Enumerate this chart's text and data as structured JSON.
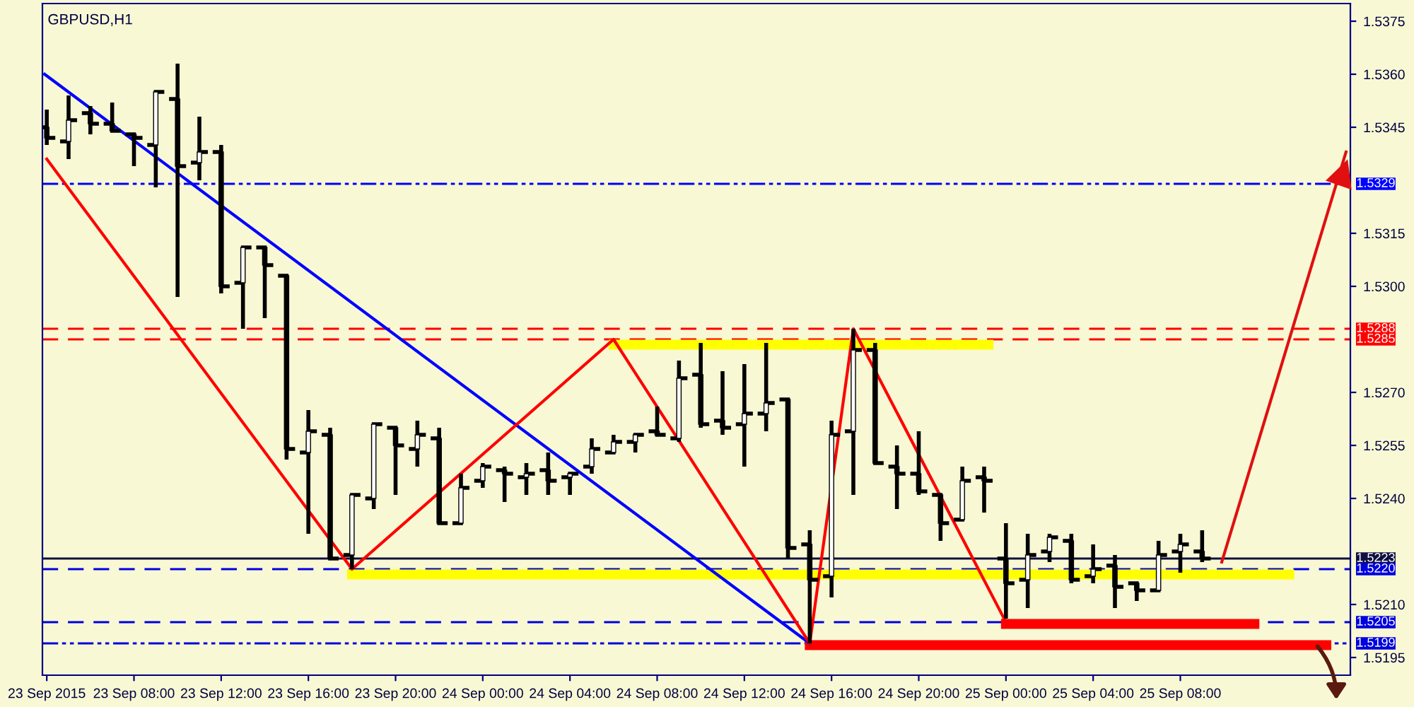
{
  "chart_data": {
    "type": "candlestick",
    "title": "GBPUSD,H1",
    "x": [
      "2015-09-23T04:00",
      "2015-09-23T05:00",
      "2015-09-23T06:00",
      "2015-09-23T07:00",
      "2015-09-23T08:00",
      "2015-09-23T09:00",
      "2015-09-23T10:00",
      "2015-09-23T11:00",
      "2015-09-23T12:00",
      "2015-09-23T13:00",
      "2015-09-23T14:00",
      "2015-09-23T15:00",
      "2015-09-23T16:00",
      "2015-09-23T17:00",
      "2015-09-23T18:00",
      "2015-09-23T19:00",
      "2015-09-23T20:00",
      "2015-09-23T21:00",
      "2015-09-23T22:00",
      "2015-09-23T23:00",
      "2015-09-24T00:00",
      "2015-09-24T01:00",
      "2015-09-24T02:00",
      "2015-09-24T03:00",
      "2015-09-24T04:00",
      "2015-09-24T05:00",
      "2015-09-24T06:00",
      "2015-09-24T07:00",
      "2015-09-24T08:00",
      "2015-09-24T09:00",
      "2015-09-24T10:00",
      "2015-09-24T11:00",
      "2015-09-24T12:00",
      "2015-09-24T13:00",
      "2015-09-24T14:00",
      "2015-09-24T15:00",
      "2015-09-24T16:00",
      "2015-09-24T17:00",
      "2015-09-24T18:00",
      "2015-09-24T19:00",
      "2015-09-24T20:00",
      "2015-09-24T21:00",
      "2015-09-24T22:00",
      "2015-09-24T23:00",
      "2015-09-25T00:00",
      "2015-09-25T01:00",
      "2015-09-25T02:00",
      "2015-09-25T03:00",
      "2015-09-25T04:00",
      "2015-09-25T05:00",
      "2015-09-25T06:00",
      "2015-09-25T07:00",
      "2015-09-25T08:00",
      "2015-09-25T09:00"
    ],
    "ohlc": [
      [
        1.5345,
        1.535,
        1.534,
        1.5342
      ],
      [
        1.5341,
        1.5354,
        1.5336,
        1.5347
      ],
      [
        1.5349,
        1.5351,
        1.5343,
        1.5346
      ],
      [
        1.5346,
        1.5352,
        1.5344,
        1.5344
      ],
      [
        1.5343,
        1.5343,
        1.5334,
        1.5342
      ],
      [
        1.534,
        1.5355,
        1.5328,
        1.5355
      ],
      [
        1.5353,
        1.5363,
        1.5297,
        1.5334
      ],
      [
        1.5335,
        1.5348,
        1.533,
        1.5338
      ],
      [
        1.5338,
        1.534,
        1.5298,
        1.53
      ],
      [
        1.5301,
        1.5311,
        1.5288,
        1.5311
      ],
      [
        1.5311,
        1.5311,
        1.5291,
        1.5306
      ],
      [
        1.5303,
        1.5303,
        1.5251,
        1.5254
      ],
      [
        1.5253,
        1.5265,
        1.523,
        1.5259
      ],
      [
        1.5258,
        1.526,
        1.5223,
        1.5223
      ],
      [
        1.5224,
        1.5241,
        1.522,
        1.5241
      ],
      [
        1.524,
        1.5261,
        1.5237,
        1.5261
      ],
      [
        1.526,
        1.526,
        1.5241,
        1.5255
      ],
      [
        1.5254,
        1.5262,
        1.5249,
        1.5258
      ],
      [
        1.5257,
        1.526,
        1.5233,
        1.5233
      ],
      [
        1.5233,
        1.5247,
        1.5233,
        1.5243
      ],
      [
        1.5245,
        1.525,
        1.5243,
        1.5249
      ],
      [
        1.5248,
        1.5249,
        1.5239,
        1.5247
      ],
      [
        1.5246,
        1.525,
        1.5241,
        1.5247
      ],
      [
        1.5248,
        1.5253,
        1.5241,
        1.5245
      ],
      [
        1.5246,
        1.5247,
        1.5241,
        1.5247
      ],
      [
        1.5249,
        1.5257,
        1.5247,
        1.5254
      ],
      [
        1.5253,
        1.5258,
        1.5253,
        1.5256
      ],
      [
        1.5256,
        1.5258,
        1.5253,
        1.5258
      ],
      [
        1.5259,
        1.5266,
        1.5258,
        1.5258
      ],
      [
        1.5257,
        1.5279,
        1.5256,
        1.5274
      ],
      [
        1.5275,
        1.5284,
        1.526,
        1.5261
      ],
      [
        1.5262,
        1.5276,
        1.5258,
        1.526
      ],
      [
        1.5261,
        1.5278,
        1.5249,
        1.5264
      ],
      [
        1.5264,
        1.5284,
        1.5259,
        1.5267
      ],
      [
        1.5268,
        1.5268,
        1.5223,
        1.5226
      ],
      [
        1.5227,
        1.5231,
        1.5199,
        1.5217
      ],
      [
        1.5218,
        1.5262,
        1.5212,
        1.5258
      ],
      [
        1.5259,
        1.5288,
        1.5241,
        1.5282
      ],
      [
        1.5282,
        1.5284,
        1.525,
        1.525
      ],
      [
        1.5249,
        1.5255,
        1.5237,
        1.5247
      ],
      [
        1.5247,
        1.5259,
        1.5241,
        1.5242
      ],
      [
        1.5241,
        1.5241,
        1.5228,
        1.5233
      ],
      [
        1.5234,
        1.5249,
        1.5234,
        1.5245
      ],
      [
        1.5246,
        1.5249,
        1.5236,
        1.5245
      ],
      [
        1.5223,
        1.5233,
        1.5206,
        1.5216
      ],
      [
        1.5217,
        1.523,
        1.5209,
        1.5224
      ],
      [
        1.5225,
        1.523,
        1.5222,
        1.5229
      ],
      [
        1.5228,
        1.523,
        1.5216,
        1.5217
      ],
      [
        1.5218,
        1.5227,
        1.5216,
        1.522
      ],
      [
        1.5221,
        1.5224,
        1.5209,
        1.5215
      ],
      [
        1.5216,
        1.5216,
        1.5211,
        1.5214
      ],
      [
        1.5214,
        1.5228,
        1.5214,
        1.5224
      ],
      [
        1.5225,
        1.523,
        1.5219,
        1.5227
      ],
      [
        1.5225,
        1.5231,
        1.5222,
        1.5223
      ]
    ],
    "color": "#000000",
    "series": [
      {
        "type": "line",
        "color": "#0000ff",
        "x": [
          "2015-09-23T03:54",
          "2015-09-24T15:00"
        ],
        "values": [
          1.536,
          1.5199
        ]
      },
      {
        "type": "line",
        "color": "#ff0000",
        "x": [
          "2015-09-23T04:00",
          "2015-09-23T18:00",
          "2015-09-24T06:00",
          "2015-09-24T15:00",
          "2015-09-24T17:00",
          "2015-09-25T00:00"
        ],
        "values": [
          1.5336,
          1.522,
          1.5285,
          1.5199,
          1.5288,
          1.5205
        ]
      },
      {
        "type": "line",
        "color": "#ffff00",
        "x": [
          "2015-09-24T06:00",
          "2015-09-24T23:12"
        ],
        "values": [
          1.52835,
          1.52835
        ]
      },
      {
        "type": "line",
        "color": "#ffff00",
        "x": [
          "2015-09-23T18:00",
          "2015-09-25T13:00"
        ],
        "values": [
          1.52185,
          1.52185
        ]
      },
      {
        "type": "line",
        "color": "#ff0000",
        "x": [
          "2015-09-25T00:00",
          "2015-09-25T11:24"
        ],
        "values": [
          1.52045,
          1.52045
        ]
      },
      {
        "type": "line",
        "color": "#ff0000",
        "x": [
          "2015-09-24T15:00",
          "2015-09-25T14:42"
        ],
        "values": [
          1.51985,
          1.51985
        ]
      },
      {
        "type": "line",
        "color": "#e01010",
        "x": [
          "2015-09-25T09:54",
          "2015-09-25T15:36"
        ],
        "values": [
          1.5222,
          1.5338
        ]
      }
    ],
    "ref_lines": [
      {
        "axis": "y",
        "value": 1.5329,
        "label": "1.5329",
        "color": "#0000ff",
        "line_style": "dotted"
      },
      {
        "axis": "y",
        "value": 1.5288,
        "label": "1.5288",
        "color": "#ff0000",
        "line_style": "dashed"
      },
      {
        "axis": "y",
        "value": 1.5285,
        "label": "1.5285",
        "color": "#ff0000",
        "line_style": "dashed"
      },
      {
        "axis": "y",
        "value": 1.5223,
        "label": "1.5223",
        "color": "#101040",
        "line_style": "solid"
      },
      {
        "axis": "y",
        "value": 1.522,
        "label": "1.5220",
        "color": "#0000dd",
        "line_style": "dashed"
      },
      {
        "axis": "y",
        "value": 1.5205,
        "label": "1.5205",
        "color": "#0000dd",
        "line_style": "dashed"
      },
      {
        "axis": "y",
        "value": 1.5199,
        "label": "1.5199",
        "color": "#0000dd",
        "line_style": "dotted"
      }
    ],
    "xlim": [
      "2015-09-23T03:48",
      "2015-09-25T15:48"
    ],
    "xticks": [
      {
        "value": "2015-09-23T04:00",
        "label": "23 Sep 2015"
      },
      {
        "value": "2015-09-23T08:00",
        "label": "23 Sep 08:00"
      },
      {
        "value": "2015-09-23T12:00",
        "label": "23 Sep 12:00"
      },
      {
        "value": "2015-09-23T16:00",
        "label": "23 Sep 16:00"
      },
      {
        "value": "2015-09-23T20:00",
        "label": "23 Sep 20:00"
      },
      {
        "value": "2015-09-24T00:00",
        "label": "24 Sep 00:00"
      },
      {
        "value": "2015-09-24T04:00",
        "label": "24 Sep 04:00"
      },
      {
        "value": "2015-09-24T08:00",
        "label": "24 Sep 08:00"
      },
      {
        "value": "2015-09-24T12:00",
        "label": "24 Sep 12:00"
      },
      {
        "value": "2015-09-24T16:00",
        "label": "24 Sep 16:00"
      },
      {
        "value": "2015-09-24T20:00",
        "label": "24 Sep 20:00"
      },
      {
        "value": "2015-09-25T00:00",
        "label": "25 Sep 00:00"
      },
      {
        "value": "2015-09-25T04:00",
        "label": "25 Sep 04:00"
      },
      {
        "value": "2015-09-25T08:00",
        "label": "25 Sep 08:00"
      }
    ],
    "ylim": [
      1.519,
      1.538
    ],
    "yticks": [
      1.5375,
      {
        "value": 1.536,
        "label": "1.5360"
      },
      1.5345,
      1.5315,
      {
        "value": 1.53,
        "label": "1.5300"
      },
      {
        "value": 1.527,
        "label": "1.5270"
      },
      1.5255,
      {
        "value": 1.524,
        "label": "1.5240"
      },
      {
        "value": 1.521,
        "label": "1.5210"
      },
      1.5195
    ],
    "grid": false
  }
}
